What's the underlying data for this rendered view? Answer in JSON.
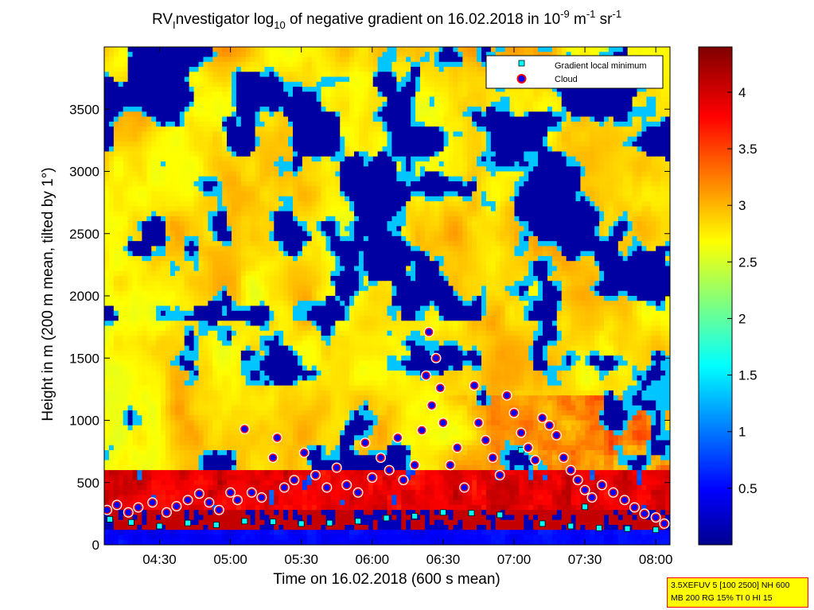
{
  "title": {
    "prefix": "RV",
    "sub_I": "I",
    "mid1": "nvestigator log",
    "sub_10": "10",
    "mid2": " of negative gradient on 16.02.2018 in 10",
    "sup_m9": "-9",
    "mid3": " m",
    "sup_m1": "-1",
    "suffix": " sr",
    "sup_m1b": "-1"
  },
  "info_box": {
    "line1": "3.5XEFUV 5 [100 2500] NH 600",
    "line2": "MB 200 RG 15% TI 0 HI 15"
  },
  "chart_data": {
    "type": "heatmap",
    "xlabel": "Time on 16.02.2018 (600 s mean)",
    "ylabel": "Height in m (200 m mean, tilted by 1°)",
    "x_ticks": [
      "04:30",
      "05:00",
      "05:30",
      "06:00",
      "06:30",
      "07:00",
      "07:30",
      "08:00"
    ],
    "x_tick_hours": [
      4.5,
      5.0,
      5.5,
      6.0,
      6.5,
      7.0,
      7.5,
      8.0
    ],
    "xlim_hours": [
      4.11,
      8.1
    ],
    "y_ticks": [
      0,
      500,
      1000,
      1500,
      2000,
      2500,
      3000,
      3500
    ],
    "ylim": [
      0,
      4000
    ],
    "colorbar": {
      "colormap": "jet",
      "ticks": [
        0.5,
        1,
        1.5,
        2,
        2.5,
        3,
        3.5,
        4
      ],
      "tick_labels": [
        "0.5",
        "1",
        "1.5",
        "2",
        "2.5",
        "3",
        "3.5",
        "4"
      ],
      "range": [
        0,
        4.4
      ]
    },
    "legend": {
      "placement": "top-right",
      "entries": [
        {
          "label": "Gradient local minimum",
          "marker": "square",
          "color": "#00ffff"
        },
        {
          "label": "Cloud",
          "marker": "circle",
          "color": "#0000ff",
          "edge": "#ff0000"
        }
      ]
    },
    "series": [
      {
        "name": "Gradient local minimum",
        "marker": "square",
        "points": [
          {
            "x": 4.15,
            "y": 205
          },
          {
            "x": 4.3,
            "y": 180
          },
          {
            "x": 4.5,
            "y": 150
          },
          {
            "x": 4.7,
            "y": 175
          },
          {
            "x": 4.9,
            "y": 160
          },
          {
            "x": 5.1,
            "y": 190
          },
          {
            "x": 5.3,
            "y": 185
          },
          {
            "x": 5.5,
            "y": 170
          },
          {
            "x": 5.7,
            "y": 175
          },
          {
            "x": 5.9,
            "y": 190
          },
          {
            "x": 6.1,
            "y": 215
          },
          {
            "x": 6.3,
            "y": 230
          },
          {
            "x": 6.5,
            "y": 260
          },
          {
            "x": 6.7,
            "y": 255
          },
          {
            "x": 6.9,
            "y": 240
          },
          {
            "x": 7.05,
            "y": 760
          },
          {
            "x": 7.2,
            "y": 170
          },
          {
            "x": 7.4,
            "y": 150
          },
          {
            "x": 7.5,
            "y": 305
          },
          {
            "x": 7.6,
            "y": 135
          },
          {
            "x": 7.8,
            "y": 130
          },
          {
            "x": 8.0,
            "y": 120
          }
        ]
      },
      {
        "name": "Cloud",
        "marker": "circle",
        "points": [
          {
            "x": 4.13,
            "y": 280
          },
          {
            "x": 4.2,
            "y": 320
          },
          {
            "x": 4.28,
            "y": 260
          },
          {
            "x": 4.35,
            "y": 300
          },
          {
            "x": 4.45,
            "y": 340
          },
          {
            "x": 4.55,
            "y": 260
          },
          {
            "x": 4.62,
            "y": 310
          },
          {
            "x": 4.7,
            "y": 360
          },
          {
            "x": 4.78,
            "y": 410
          },
          {
            "x": 4.85,
            "y": 340
          },
          {
            "x": 4.92,
            "y": 280
          },
          {
            "x": 5.0,
            "y": 420
          },
          {
            "x": 5.05,
            "y": 360
          },
          {
            "x": 5.1,
            "y": 930
          },
          {
            "x": 5.15,
            "y": 420
          },
          {
            "x": 5.22,
            "y": 380
          },
          {
            "x": 5.3,
            "y": 700
          },
          {
            "x": 5.33,
            "y": 860
          },
          {
            "x": 5.38,
            "y": 460
          },
          {
            "x": 5.45,
            "y": 520
          },
          {
            "x": 5.52,
            "y": 740
          },
          {
            "x": 5.6,
            "y": 560
          },
          {
            "x": 5.68,
            "y": 460
          },
          {
            "x": 5.75,
            "y": 620
          },
          {
            "x": 5.82,
            "y": 480
          },
          {
            "x": 5.9,
            "y": 420
          },
          {
            "x": 5.95,
            "y": 820
          },
          {
            "x": 6.0,
            "y": 540
          },
          {
            "x": 6.06,
            "y": 700
          },
          {
            "x": 6.12,
            "y": 600
          },
          {
            "x": 6.18,
            "y": 860
          },
          {
            "x": 6.22,
            "y": 520
          },
          {
            "x": 6.3,
            "y": 640
          },
          {
            "x": 6.35,
            "y": 920
          },
          {
            "x": 6.38,
            "y": 1360
          },
          {
            "x": 6.4,
            "y": 1710
          },
          {
            "x": 6.42,
            "y": 1120
          },
          {
            "x": 6.45,
            "y": 1500
          },
          {
            "x": 6.48,
            "y": 1260
          },
          {
            "x": 6.5,
            "y": 980
          },
          {
            "x": 6.55,
            "y": 640
          },
          {
            "x": 6.6,
            "y": 780
          },
          {
            "x": 6.65,
            "y": 460
          },
          {
            "x": 6.72,
            "y": 1280
          },
          {
            "x": 6.75,
            "y": 980
          },
          {
            "x": 6.8,
            "y": 840
          },
          {
            "x": 6.85,
            "y": 700
          },
          {
            "x": 6.9,
            "y": 560
          },
          {
            "x": 6.95,
            "y": 1200
          },
          {
            "x": 7.0,
            "y": 1060
          },
          {
            "x": 7.05,
            "y": 900
          },
          {
            "x": 7.1,
            "y": 780
          },
          {
            "x": 7.15,
            "y": 680
          },
          {
            "x": 7.2,
            "y": 1020
          },
          {
            "x": 7.25,
            "y": 960
          },
          {
            "x": 7.3,
            "y": 880
          },
          {
            "x": 7.35,
            "y": 700
          },
          {
            "x": 7.4,
            "y": 600
          },
          {
            "x": 7.45,
            "y": 520
          },
          {
            "x": 7.5,
            "y": 440
          },
          {
            "x": 7.55,
            "y": 380
          },
          {
            "x": 7.62,
            "y": 480
          },
          {
            "x": 7.7,
            "y": 420
          },
          {
            "x": 7.78,
            "y": 360
          },
          {
            "x": 7.85,
            "y": 300
          },
          {
            "x": 7.92,
            "y": 250
          },
          {
            "x": 8.0,
            "y": 220
          },
          {
            "x": 8.06,
            "y": 170
          }
        ]
      }
    ]
  }
}
